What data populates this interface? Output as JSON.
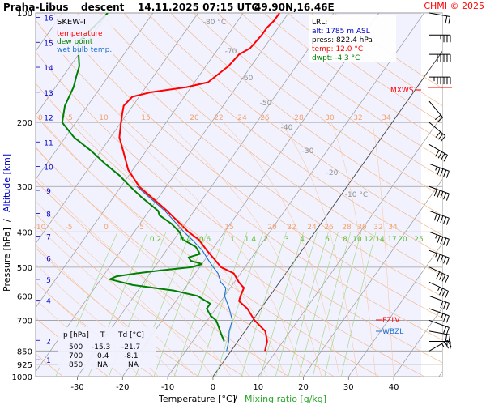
{
  "header": {
    "station": "Praha-Libus",
    "phase": "descent",
    "datetime": "14.11.2025 07:15 UTC",
    "coords": "49.90N,16.46E",
    "copyright": "CHMI © 2025"
  },
  "legend": {
    "title": "SKEW-T",
    "items": [
      {
        "label": "temperature",
        "color": "#ff0000"
      },
      {
        "label": "dew point",
        "color": "#008000"
      },
      {
        "label": "wet bulb temp.",
        "color": "#1e6fd0"
      }
    ]
  },
  "lrl": {
    "title": "LRL:",
    "alt": "alt: 1785 m ASL",
    "press": "press: 822.4 hPa",
    "temp": "temp: 12.0 °C",
    "dwpt": "dwpt: -4.3 °C"
  },
  "axes": {
    "xlabel": "Temperature [°C]",
    "xlabel_sep": "/",
    "xlabel2": "Mixing ratio [g/kg]",
    "ylabel": "Pressure [hPa]",
    "ylabel_sep": "/",
    "ylabel2": "Altitude [km]"
  },
  "markers": {
    "mxws": "MXWS",
    "fzlv": "FZLV",
    "wbzl": "WBZL"
  },
  "table": {
    "headers": [
      "p [hPa]",
      "T",
      "Td [°C]"
    ],
    "rows": [
      [
        "500",
        "-15.3",
        "-21.7"
      ],
      [
        "700",
        "0.4",
        "-8.1"
      ],
      [
        "850",
        "NA",
        "NA"
      ]
    ]
  },
  "chart_data": {
    "type": "skew-t",
    "pressure_ticks": [
      100,
      200,
      300,
      400,
      500,
      600,
      700,
      850,
      925,
      1000
    ],
    "temperature_ticks": [
      -30,
      -20,
      -10,
      0,
      10,
      20,
      30,
      40
    ],
    "altitude_ticks_km": [
      1,
      2,
      4,
      5,
      6,
      7,
      8,
      9,
      10,
      11,
      12,
      13,
      14,
      15,
      16
    ],
    "dry_adiabat_labels": [
      "-80 °C",
      "-70",
      "-60",
      "-50",
      "-40",
      "-30",
      "-20",
      "-10 °C"
    ],
    "mixing_ratio_labels": [
      "0.2",
      "0.4",
      "0.6",
      "1",
      "1.4",
      "2",
      "3",
      "4",
      "6",
      "8",
      "10",
      "12",
      "14",
      "17",
      "20",
      "25"
    ],
    "moist_adiabat_labels_top": [
      "0",
      "5",
      "10",
      "15",
      "20",
      "22",
      "24",
      "26",
      "28",
      "30",
      "32",
      "34"
    ],
    "moist_adiabat_labels_mid": [
      "-10",
      "-5",
      "0",
      "5",
      "10",
      "15",
      "20",
      "22",
      "24",
      "26",
      "28",
      "30",
      "32",
      "34"
    ],
    "series": [
      {
        "name": "temperature",
        "color": "#ff0000",
        "points": [
          [
            850,
            7.5
          ],
          [
            800,
            6.5
          ],
          [
            750,
            4.5
          ],
          [
            700,
            0.4
          ],
          [
            650,
            -3.0
          ],
          [
            620,
            -6.0
          ],
          [
            600,
            -6.5
          ],
          [
            570,
            -7.0
          ],
          [
            550,
            -9.0
          ],
          [
            520,
            -11.5
          ],
          [
            500,
            -15.3
          ],
          [
            480,
            -17.5
          ],
          [
            450,
            -21.0
          ],
          [
            420,
            -24.5
          ],
          [
            400,
            -28.0
          ],
          [
            350,
            -36.0
          ],
          [
            300,
            -46.0
          ],
          [
            270,
            -51.0
          ],
          [
            240,
            -55.0
          ],
          [
            220,
            -58.0
          ],
          [
            200,
            -60.0
          ],
          [
            190,
            -61.0
          ],
          [
            180,
            -62.0
          ],
          [
            170,
            -61.5
          ],
          [
            165,
            -58.0
          ],
          [
            160,
            -51.0
          ],
          [
            155,
            -47.0
          ],
          [
            140,
            -45.0
          ],
          [
            130,
            -44.5
          ],
          [
            125,
            -43.0
          ],
          [
            115,
            -42.5
          ],
          [
            110,
            -42.5
          ],
          [
            105,
            -42.0
          ],
          [
            100,
            -42.0
          ]
        ]
      },
      {
        "name": "dew point",
        "color": "#008000",
        "points": [
          [
            800,
            -3.0
          ],
          [
            760,
            -5.0
          ],
          [
            720,
            -7.0
          ],
          [
            700,
            -8.1
          ],
          [
            680,
            -10.0
          ],
          [
            650,
            -12.0
          ],
          [
            630,
            -12.0
          ],
          [
            600,
            -16.0
          ],
          [
            580,
            -22.0
          ],
          [
            560,
            -32.0
          ],
          [
            540,
            -38.0
          ],
          [
            530,
            -37.0
          ],
          [
            520,
            -33.0
          ],
          [
            510,
            -28.0
          ],
          [
            500,
            -21.7
          ],
          [
            490,
            -20.0
          ],
          [
            480,
            -23.0
          ],
          [
            470,
            -24.0
          ],
          [
            460,
            -22.0
          ],
          [
            440,
            -24.0
          ],
          [
            420,
            -28.0
          ],
          [
            400,
            -30.0
          ],
          [
            380,
            -33.0
          ],
          [
            360,
            -37.0
          ],
          [
            350,
            -38.0
          ],
          [
            320,
            -44.0
          ],
          [
            300,
            -48.0
          ],
          [
            280,
            -52.0
          ],
          [
            260,
            -57.0
          ],
          [
            240,
            -62.0
          ],
          [
            220,
            -68.0
          ],
          [
            200,
            -73.0
          ],
          [
            180,
            -75.0
          ],
          [
            160,
            -76.0
          ],
          [
            150,
            -77.0
          ],
          [
            140,
            -78.0
          ],
          [
            130,
            -80.0
          ],
          [
            120,
            -82.0
          ],
          [
            110,
            -81.0
          ],
          [
            100,
            -80.0
          ]
        ]
      },
      {
        "name": "wet bulb temp.",
        "color": "#1e6fd0",
        "points": [
          [
            850,
            -1.0
          ],
          [
            800,
            -2.0
          ],
          [
            750,
            -3.5
          ],
          [
            700,
            -4.5
          ],
          [
            650,
            -7.0
          ],
          [
            600,
            -10.0
          ],
          [
            570,
            -11.0
          ],
          [
            550,
            -13.0
          ],
          [
            520,
            -15.0
          ],
          [
            500,
            -17.0
          ],
          [
            480,
            -19.0
          ],
          [
            450,
            -22.0
          ],
          [
            420,
            -26.0
          ],
          [
            400,
            -29.0
          ],
          [
            350,
            -36.5
          ],
          [
            300,
            -46.5
          ]
        ]
      }
    ],
    "wind_barbs": [
      {
        "p": 850,
        "speed": 25,
        "dir": 240
      },
      {
        "p": 800,
        "speed": 15,
        "dir": 270
      },
      {
        "p": 750,
        "speed": 20,
        "dir": 280
      },
      {
        "p": 700,
        "speed": 20,
        "dir": 290
      },
      {
        "p": 650,
        "speed": 25,
        "dir": 290
      },
      {
        "p": 600,
        "speed": 30,
        "dir": 290
      },
      {
        "p": 550,
        "speed": 35,
        "dir": 295
      },
      {
        "p": 500,
        "speed": 40,
        "dir": 295
      },
      {
        "p": 450,
        "speed": 45,
        "dir": 290
      },
      {
        "p": 400,
        "speed": 45,
        "dir": 290
      },
      {
        "p": 350,
        "speed": 50,
        "dir": 290
      },
      {
        "p": 300,
        "speed": 50,
        "dir": 290
      },
      {
        "p": 260,
        "speed": 45,
        "dir": 290
      },
      {
        "p": 230,
        "speed": 40,
        "dir": 300
      },
      {
        "p": 200,
        "speed": 30,
        "dir": 310
      },
      {
        "p": 175,
        "speed": 20,
        "dir": 320
      },
      {
        "p": 150,
        "speed": 55,
        "dir": 270
      },
      {
        "p": 130,
        "speed": 50,
        "dir": 270
      },
      {
        "p": 115,
        "speed": 35,
        "dir": 270
      },
      {
        "p": 100,
        "speed": 20,
        "dir": 280
      }
    ]
  }
}
